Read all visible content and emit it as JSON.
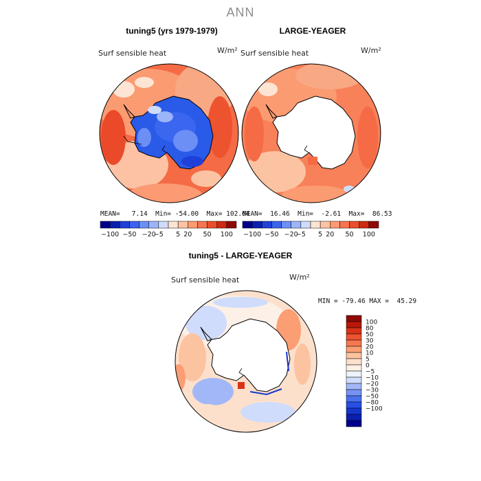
{
  "title": "ANN",
  "panels": [
    {
      "title": "tuning5 (yrs 1979-1979)",
      "variable": "Surf sensible heat",
      "unit": "W/m²",
      "stats": {
        "mean": "7.14",
        "min": "-54.00",
        "max": "102.64"
      }
    },
    {
      "title": "LARGE-YEAGER",
      "variable": "Surf sensible heat",
      "unit": "W/m²",
      "stats": {
        "mean": "16.46",
        "min": "-2.61",
        "max": "86.53"
      }
    }
  ],
  "diff_panel": {
    "title": "tuning5 - LARGE-YEAGER",
    "variable": "Surf sensible heat",
    "unit": "W/m²",
    "stats": {
      "min": "-79.46",
      "max": "45.29"
    }
  },
  "labels": {
    "mean": "MEAN=",
    "min": "Min=",
    "max": "Max=",
    "diff_min": "MIN =",
    "diff_max": "MAX ="
  },
  "colorbar_top": {
    "colors": [
      "#00008b",
      "#0a1fb0",
      "#1f3fd9",
      "#3a63f0",
      "#6b8ff5",
      "#9cb5f8",
      "#cfdcfb",
      "#fde4d3",
      "#fdc3a3",
      "#fc9b72",
      "#f7744f",
      "#ec4e2c",
      "#cf2a12",
      "#8e0a05"
    ],
    "tick_labels": [
      "-100",
      "-50",
      "-20",
      "-5",
      "5",
      "20",
      "50",
      "100"
    ]
  },
  "colorbar_diff": {
    "colors": [
      "#00008b",
      "#0a1fb0",
      "#1536cc",
      "#2750e6",
      "#4a70f0",
      "#7593f4",
      "#a2b7f7",
      "#cfdcfb",
      "#eef3fd",
      "#fdf0e6",
      "#fde0cc",
      "#fcc3a0",
      "#fb9e74",
      "#f7784f",
      "#ee5330",
      "#d83319",
      "#b8170a",
      "#8e0a05"
    ],
    "labels": [
      "100",
      "80",
      "50",
      "30",
      "20",
      "10",
      "5",
      "0",
      "-5",
      "-10",
      "-20",
      "-30",
      "-50",
      "-80",
      "-100"
    ]
  }
}
